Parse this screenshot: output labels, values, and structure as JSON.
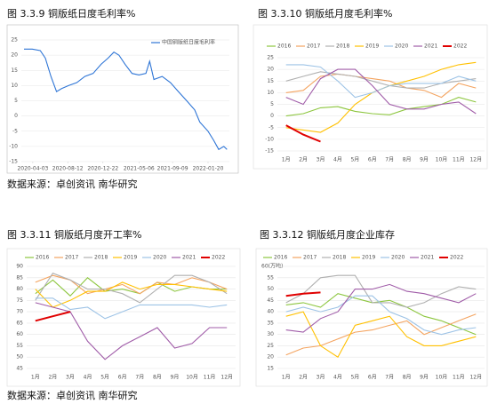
{
  "sources": [
    "数据来源：卓创资讯 南华研究",
    "数据来源：卓创资讯 南华研究"
  ],
  "chart_data": [
    {
      "type": "line",
      "title": "图 3.3.9 铜版纸日度毛利率%",
      "x": [
        "2020-03-01",
        "2020-04-01",
        "2020-05-01",
        "2020-05-20",
        "2020-06-10",
        "2020-07-01",
        "2020-07-20",
        "2020-08-15",
        "2020-09-15",
        "2020-10-15",
        "2020-11-15",
        "2020-12-15",
        "2021-01-10",
        "2021-02-01",
        "2021-02-20",
        "2021-03-15",
        "2021-04-10",
        "2021-05-06",
        "2021-06-01",
        "2021-06-15",
        "2021-07-01",
        "2021-08-01",
        "2021-09-01",
        "2021-10-01",
        "2021-11-01",
        "2021-12-01",
        "2021-12-20",
        "2022-01-20",
        "2022-02-10",
        "2022-03-01",
        "2022-03-20",
        "2022-04-01"
      ],
      "series": [
        {
          "name": "中国铜版纸日度毛利率",
          "color": "#2e75d6",
          "values": [
            22,
            22,
            21.5,
            19,
            13,
            8,
            9,
            10,
            11,
            13,
            14,
            17,
            19,
            21,
            20,
            17,
            14,
            13.5,
            14,
            18,
            12,
            13,
            11,
            8,
            5,
            2,
            -2,
            -5,
            -8,
            -11,
            -10,
            -11
          ]
        }
      ],
      "xlim": [
        "2020-02-20",
        "2022-04-10"
      ],
      "xticks": [
        "2020-04-03",
        "2020-08-12",
        "2020-12-22",
        "2021-05-06",
        "2021-09-09",
        "2022-01-20"
      ],
      "ylim": [
        -15,
        25
      ],
      "yticks": [
        -15,
        -10,
        -5,
        0,
        5,
        10,
        15,
        20,
        25
      ],
      "grid": true
    },
    {
      "type": "line",
      "title": "图 3.3.10 铜版纸月度毛利率%",
      "categories": [
        "1月",
        "2月",
        "3月",
        "4月",
        "5月",
        "6月",
        "7月",
        "8月",
        "9月",
        "10月",
        "11月",
        "12月"
      ],
      "series": [
        {
          "name": "2016",
          "color": "#8dc63f",
          "values": [
            0,
            1,
            3.5,
            4,
            2,
            1,
            0.5,
            3,
            4,
            5,
            8,
            6
          ]
        },
        {
          "name": "2017",
          "color": "#f4a460",
          "values": [
            10,
            11,
            17,
            18,
            17,
            16,
            15,
            12,
            11,
            8,
            14,
            12
          ]
        },
        {
          "name": "2018",
          "color": "#b0b0b0",
          "values": [
            15,
            17,
            19,
            18,
            17,
            15,
            13,
            12,
            12,
            14,
            15,
            16
          ]
        },
        {
          "name": "2019",
          "color": "#ffc000",
          "values": [
            -5,
            -6,
            -7,
            -3,
            5,
            10,
            13,
            15,
            17,
            20,
            22,
            23
          ]
        },
        {
          "name": "2020",
          "color": "#9dc3e6",
          "values": [
            22,
            22,
            21,
            15,
            8,
            10,
            13,
            14,
            14,
            14,
            17,
            15
          ]
        },
        {
          "name": "2021",
          "color": "#a05ca8",
          "values": [
            8,
            5,
            16,
            20,
            20,
            13,
            5,
            3,
            3,
            5,
            6,
            1
          ]
        },
        {
          "name": "2022",
          "color": "#e00000",
          "values": [
            -4,
            -8,
            -11,
            null,
            null,
            null,
            null,
            null,
            null,
            null,
            null,
            null
          ]
        }
      ],
      "ylim": [
        -15,
        25
      ],
      "yticks": [
        -15,
        -10,
        -5,
        0,
        5,
        10,
        15,
        20,
        25
      ],
      "grid": true
    },
    {
      "type": "line",
      "title": "图 3.3.11 铜版纸月度开工率%",
      "categories": [
        "1月",
        "2月",
        "3月",
        "4月",
        "5月",
        "6月",
        "7月",
        "8月",
        "9月",
        "10月",
        "11月",
        "12月"
      ],
      "series": [
        {
          "name": "2016",
          "color": "#8dc63f",
          "values": [
            78,
            84,
            77,
            85,
            79,
            80,
            78,
            83,
            79,
            81,
            80,
            80
          ]
        },
        {
          "name": "2017",
          "color": "#f4a460",
          "values": [
            83,
            86,
            84,
            78,
            80,
            82,
            78,
            83,
            82,
            85,
            83,
            80
          ]
        },
        {
          "name": "2018",
          "color": "#b0b0b0",
          "values": [
            75,
            87,
            84,
            80,
            80,
            78,
            74,
            80,
            86,
            86,
            83,
            78
          ]
        },
        {
          "name": "2019",
          "color": "#ffc000",
          "values": [
            80,
            72,
            75,
            79,
            79,
            83,
            80,
            82,
            82,
            81,
            80,
            79
          ]
        },
        {
          "name": "2020",
          "color": "#9dc3e6",
          "values": [
            76,
            76,
            71,
            72,
            67,
            70,
            73,
            73,
            73,
            73,
            72,
            73
          ]
        },
        {
          "name": "2021",
          "color": "#a05ca8",
          "values": [
            74,
            72,
            70,
            57,
            49,
            55,
            59,
            63,
            54,
            56,
            63,
            63
          ]
        },
        {
          "name": "2022",
          "color": "#e00000",
          "values": [
            66,
            68,
            70,
            null,
            null,
            null,
            null,
            null,
            null,
            null,
            null,
            null
          ]
        }
      ],
      "ylim": [
        45,
        90
      ],
      "yticks": [
        45,
        50,
        55,
        60,
        65,
        70,
        75,
        80,
        85,
        90
      ],
      "grid": true
    },
    {
      "type": "line",
      "title": "图 3.3.12 铜版纸月度企业库存",
      "categories": [
        "1月",
        "2月",
        "3月",
        "4月",
        "5月",
        "6月",
        "7月",
        "8月",
        "9月",
        "10月",
        "11月",
        "12月"
      ],
      "series": [
        {
          "name": "2016",
          "color": "#8dc63f",
          "values": [
            43,
            44,
            42,
            48,
            46,
            44,
            45,
            42,
            38,
            36,
            33,
            30
          ]
        },
        {
          "name": "2017",
          "color": "#f4a460",
          "values": [
            21,
            24,
            25,
            28,
            31,
            32,
            34,
            36,
            30,
            33,
            36,
            39
          ]
        },
        {
          "name": "2018",
          "color": "#b0b0b0",
          "values": [
            44,
            48,
            55,
            56,
            56,
            44,
            44,
            42,
            44,
            48,
            51,
            50
          ]
        },
        {
          "name": "2019",
          "color": "#ffc000",
          "values": [
            38,
            40,
            25,
            20,
            34,
            36,
            38,
            29,
            25,
            25,
            27,
            29
          ]
        },
        {
          "name": "2020",
          "color": "#9dc3e6",
          "values": [
            40,
            42,
            40,
            42,
            47,
            47,
            40,
            37,
            32,
            30,
            32,
            33
          ]
        },
        {
          "name": "2021",
          "color": "#a05ca8",
          "values": [
            32,
            31,
            37,
            40,
            50,
            50,
            52,
            49,
            48,
            46,
            44,
            48
          ]
        },
        {
          "name": "2022",
          "color": "#e00000",
          "values": [
            47,
            48,
            48.5,
            null,
            null,
            null,
            null,
            null,
            null,
            null,
            null,
            null
          ]
        }
      ],
      "ylim": [
        15,
        60
      ],
      "yticks": [
        15,
        20,
        25,
        30,
        35,
        40,
        45,
        50,
        55,
        {
          "value": 60,
          "label": "60(万吨)"
        }
      ],
      "grid": true
    }
  ]
}
